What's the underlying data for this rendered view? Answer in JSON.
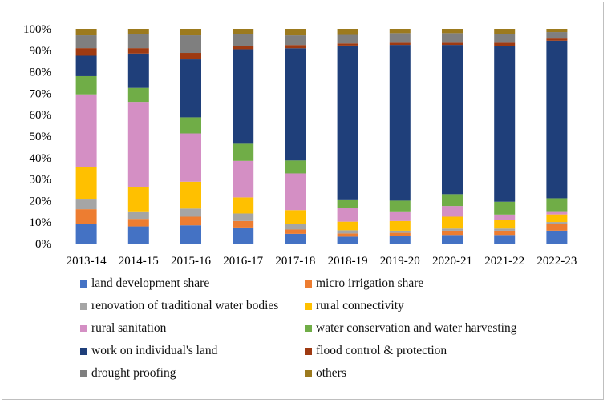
{
  "chart_data": {
    "type": "bar",
    "stacked": true,
    "normalized": true,
    "categories": [
      "2013-14",
      "2014-15",
      "2015-16",
      "2016-17",
      "2017-18",
      "2018-19",
      "2019-20",
      "2020-21",
      "2021-22",
      "2022-23"
    ],
    "y_ticks": [
      "0%",
      "10%",
      "20%",
      "30%",
      "40%",
      "50%",
      "60%",
      "70%",
      "80%",
      "90%",
      "100%"
    ],
    "ylim": [
      0,
      100
    ],
    "legend_position": "bottom",
    "grid": false,
    "series": [
      {
        "name": "land development share",
        "color": "#4472c4",
        "values": [
          9,
          8,
          8.5,
          7.5,
          4.5,
          3.2,
          3.5,
          4,
          4,
          6
        ]
      },
      {
        "name": "micro irrigation share",
        "color": "#ed7d31",
        "values": [
          7,
          3.5,
          4,
          3,
          2,
          1.5,
          1.5,
          2,
          2,
          3
        ]
      },
      {
        "name": "renovation of traditional water bodies",
        "color": "#a5a5a5",
        "values": [
          4.5,
          3.5,
          3.8,
          3.5,
          2.5,
          1.5,
          1,
          1,
          1,
          1
        ]
      },
      {
        "name": "rural connectivity",
        "color": "#ffc000",
        "values": [
          15,
          11.5,
          12.5,
          7.5,
          6.5,
          4,
          4.5,
          5.5,
          4,
          3.5
        ]
      },
      {
        "name": "rural sanitation",
        "color": "#d48fc4",
        "values": [
          34,
          39.5,
          22.5,
          17,
          17,
          6.5,
          4.5,
          5,
          2.5,
          1.5
        ]
      },
      {
        "name": "water conservation and water harvesting",
        "color": "#70ad47",
        "values": [
          8.5,
          6.5,
          7.5,
          8,
          6,
          3.5,
          5,
          5.5,
          6,
          6
        ]
      },
      {
        "name": "work on individual's land",
        "color": "#1f3f7a",
        "values": [
          9.5,
          16,
          27,
          44,
          52,
          72,
          72.5,
          69.5,
          72.5,
          73
        ]
      },
      {
        "name": "flood control & protection",
        "color": "#9e3a12",
        "values": [
          3.5,
          2.5,
          3,
          1.5,
          1.5,
          1,
          1,
          1,
          1.5,
          1
        ]
      },
      {
        "name": "drought proofing",
        "color": "#7f7f7f",
        "values": [
          6,
          6.5,
          8.2,
          5.5,
          4.5,
          4,
          4.5,
          4.5,
          4,
          3
        ]
      },
      {
        "name": "others",
        "color": "#9c7a1e",
        "values": [
          3,
          2.5,
          3,
          2.5,
          3,
          2.8,
          2,
          2,
          2.5,
          1.5
        ]
      }
    ]
  }
}
